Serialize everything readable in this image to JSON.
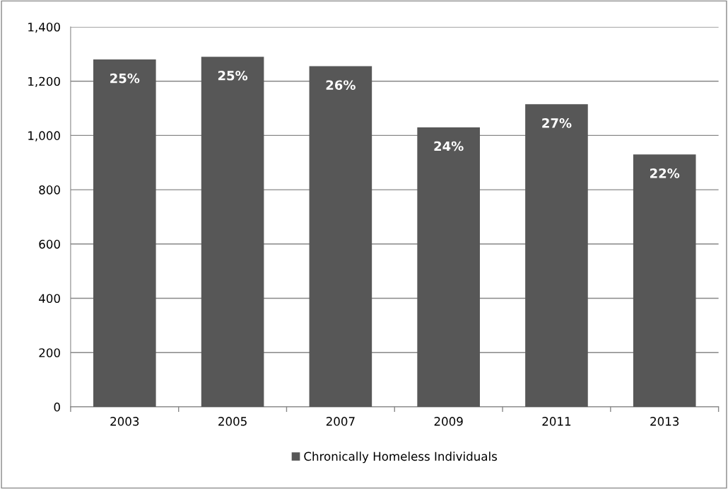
{
  "chart_data": {
    "type": "bar",
    "categories": [
      "2003",
      "2005",
      "2007",
      "2009",
      "2011",
      "2013"
    ],
    "series": [
      {
        "name": "Chronically Homeless Individuals",
        "color": "#575757",
        "values": [
          1280,
          1290,
          1255,
          1030,
          1115,
          930
        ]
      }
    ],
    "annotations": [
      {
        "text": "25%",
        "x": "2003",
        "y": 1280
      },
      {
        "text": "25%",
        "x": "2005",
        "y": 1290
      },
      {
        "text": "26%",
        "x": "2007",
        "y": 1255
      },
      {
        "text": "24%",
        "x": "2009",
        "y": 1030
      },
      {
        "text": "27%",
        "x": "2011",
        "y": 1115
      },
      {
        "text": "22%",
        "x": "2013",
        "y": 930
      }
    ],
    "ylim": [
      0,
      1400
    ],
    "yticks": [
      {
        "value": 0,
        "label": "0"
      },
      {
        "value": 200,
        "label": "200"
      },
      {
        "value": 400,
        "label": "400"
      },
      {
        "value": 600,
        "label": "600"
      },
      {
        "value": 800,
        "label": "800"
      },
      {
        "value": 1000,
        "label": "1,000"
      },
      {
        "value": 1200,
        "label": "1,200"
      },
      {
        "value": 1400,
        "label": "1,400"
      }
    ],
    "grid": "y",
    "legend": "bottom"
  }
}
